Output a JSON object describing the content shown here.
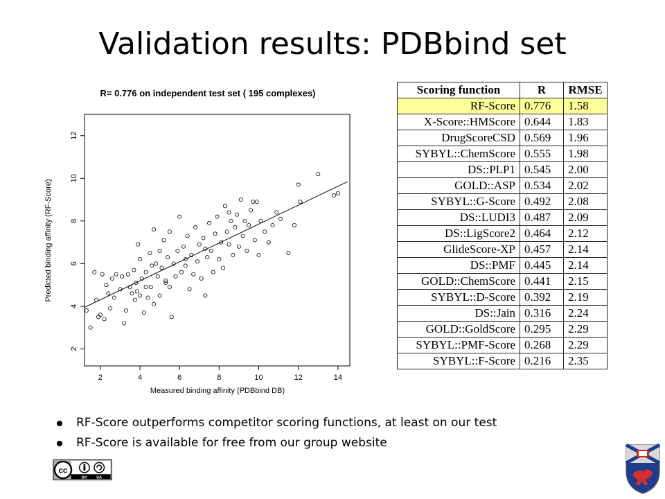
{
  "title": "Validation results: PDBbind set",
  "chart_data": {
    "type": "scatter",
    "title": "R= 0.776 on independent test set ( 195  complexes)",
    "xlabel": "Measured binding affinity (PDBbind DB)",
    "ylabel": "Predicted binding affinity (RF-Score)",
    "xlim": [
      1.2,
      14.6
    ],
    "ylim": [
      1.2,
      13.0
    ],
    "xticks": [
      "2",
      "4",
      "6",
      "8",
      "10",
      "12",
      "14"
    ],
    "yticks": [
      "2",
      "4",
      "6",
      "8",
      "10",
      "12"
    ],
    "regression_line": {
      "x": [
        1.2,
        14.5
      ],
      "y": [
        3.95,
        9.85
      ]
    },
    "series": [
      {
        "points": [
          [
            1.3,
            3.8
          ],
          [
            1.5,
            3.0
          ],
          [
            1.7,
            5.6
          ],
          [
            1.8,
            4.3
          ],
          [
            1.9,
            3.5
          ],
          [
            2.0,
            3.6
          ],
          [
            2.1,
            5.5
          ],
          [
            2.2,
            3.4
          ],
          [
            2.3,
            5.0
          ],
          [
            2.4,
            4.6
          ],
          [
            2.5,
            3.9
          ],
          [
            2.6,
            5.3
          ],
          [
            2.7,
            4.4
          ],
          [
            2.8,
            5.5
          ],
          [
            3.0,
            4.8
          ],
          [
            3.1,
            5.4
          ],
          [
            3.2,
            3.2
          ],
          [
            3.3,
            3.8
          ],
          [
            3.4,
            5.5
          ],
          [
            3.5,
            4.9
          ],
          [
            3.6,
            4.6
          ],
          [
            3.7,
            5.7
          ],
          [
            3.75,
            4.3
          ],
          [
            3.8,
            5.1
          ],
          [
            3.85,
            4.7
          ],
          [
            3.9,
            6.9
          ],
          [
            4.0,
            6.2
          ],
          [
            4.0,
            4.5
          ],
          [
            4.1,
            5.3
          ],
          [
            4.2,
            3.7
          ],
          [
            4.3,
            5.6
          ],
          [
            4.4,
            4.4
          ],
          [
            4.5,
            6.5
          ],
          [
            4.55,
            4.9
          ],
          [
            4.6,
            5.9
          ],
          [
            4.7,
            7.6
          ],
          [
            4.7,
            4.1
          ],
          [
            4.8,
            6.0
          ],
          [
            4.9,
            5.4
          ],
          [
            5.0,
            6.6
          ],
          [
            5.0,
            4.5
          ],
          [
            5.1,
            5.8
          ],
          [
            5.2,
            7.1
          ],
          [
            5.3,
            5.1
          ],
          [
            5.4,
            6.3
          ],
          [
            5.5,
            4.9
          ],
          [
            5.5,
            7.5
          ],
          [
            5.6,
            3.5
          ],
          [
            5.7,
            6.0
          ],
          [
            5.8,
            5.4
          ],
          [
            5.9,
            6.6
          ],
          [
            6.0,
            8.2
          ],
          [
            6.1,
            5.6
          ],
          [
            6.2,
            6.8
          ],
          [
            6.3,
            5.9
          ],
          [
            6.4,
            7.3
          ],
          [
            6.5,
            4.8
          ],
          [
            6.6,
            6.4
          ],
          [
            6.7,
            5.5
          ],
          [
            6.8,
            7.7
          ],
          [
            6.9,
            6.1
          ],
          [
            7.0,
            6.9
          ],
          [
            7.1,
            5.3
          ],
          [
            7.2,
            7.2
          ],
          [
            7.3,
            4.5
          ],
          [
            7.4,
            6.3
          ],
          [
            7.5,
            7.9
          ],
          [
            7.6,
            6.6
          ],
          [
            7.7,
            5.6
          ],
          [
            7.8,
            7.4
          ],
          [
            7.9,
            8.2
          ],
          [
            8.0,
            6.2
          ],
          [
            8.1,
            7.0
          ],
          [
            8.2,
            5.8
          ],
          [
            8.3,
            8.7
          ],
          [
            8.4,
            7.5
          ],
          [
            8.5,
            6.9
          ],
          [
            8.6,
            8.0
          ],
          [
            8.7,
            6.4
          ],
          [
            8.8,
            7.7
          ],
          [
            8.9,
            8.3
          ],
          [
            9.0,
            6.8
          ],
          [
            9.1,
            9.0
          ],
          [
            9.2,
            7.3
          ],
          [
            9.3,
            8.0
          ],
          [
            9.4,
            6.6
          ],
          [
            9.5,
            7.8
          ],
          [
            9.6,
            8.5
          ],
          [
            9.8,
            7.1
          ],
          [
            9.9,
            8.9
          ],
          [
            10.0,
            6.4
          ],
          [
            10.1,
            8.0
          ],
          [
            10.3,
            7.5
          ],
          [
            10.5,
            7.0
          ],
          [
            10.7,
            7.8
          ],
          [
            10.9,
            8.4
          ],
          [
            11.1,
            8.1
          ],
          [
            11.5,
            6.5
          ],
          [
            11.8,
            7.8
          ],
          [
            12.0,
            9.7
          ],
          [
            12.1,
            8.9
          ],
          [
            13.0,
            10.2
          ],
          [
            13.8,
            9.2
          ],
          [
            14.0,
            9.3
          ],
          [
            9.7,
            8.9
          ],
          [
            8.5,
            8.4
          ],
          [
            7.3,
            6.7
          ],
          [
            6.3,
            6.2
          ],
          [
            5.3,
            5.2
          ],
          [
            4.3,
            4.9
          ]
        ]
      }
    ]
  },
  "table": {
    "headers": [
      "Scoring function",
      "R",
      "RMSE"
    ],
    "rows": [
      [
        "RF-Score",
        "0.776",
        "1.58"
      ],
      [
        "X-Score::HMScore",
        "0.644",
        "1.83"
      ],
      [
        "DrugScoreCSD",
        "0.569",
        "1.96"
      ],
      [
        "SYBYL::ChemScore",
        "0.555",
        "1.98"
      ],
      [
        "DS::PLP1",
        "0.545",
        "2.00"
      ],
      [
        "GOLD::ASP",
        "0.534",
        "2.02"
      ],
      [
        "SYBYL::G-Score",
        "0.492",
        "2.08"
      ],
      [
        "DS::LUDI3",
        "0.487",
        "2.09"
      ],
      [
        "DS::LigScore2",
        "0.464",
        "2.12"
      ],
      [
        "GlideScore-XP",
        "0.457",
        "2.14"
      ],
      [
        "DS::PMF",
        "0.445",
        "2.14"
      ],
      [
        "GOLD::ChemScore",
        "0.441",
        "2.15"
      ],
      [
        "SYBYL::D-Score",
        "0.392",
        "2.19"
      ],
      [
        "DS::Jain",
        "0.316",
        "2.24"
      ],
      [
        "GOLD::GoldScore",
        "0.295",
        "2.29"
      ],
      [
        "SYBYL::PMF-Score",
        "0.268",
        "2.29"
      ],
      [
        "SYBYL::F-Score",
        "0.216",
        "2.35"
      ]
    ],
    "highlight_color": "#ffff99"
  },
  "bullets": [
    "RF-Score outperforms competitor scoring functions,  at least on our test",
    "RF-Score is available for free from our group website"
  ],
  "license": {
    "cc": "cc",
    "by": "BY",
    "sa": "SA"
  },
  "icons": {
    "license": "creative-commons-icon",
    "crest": "university-crest-icon"
  }
}
